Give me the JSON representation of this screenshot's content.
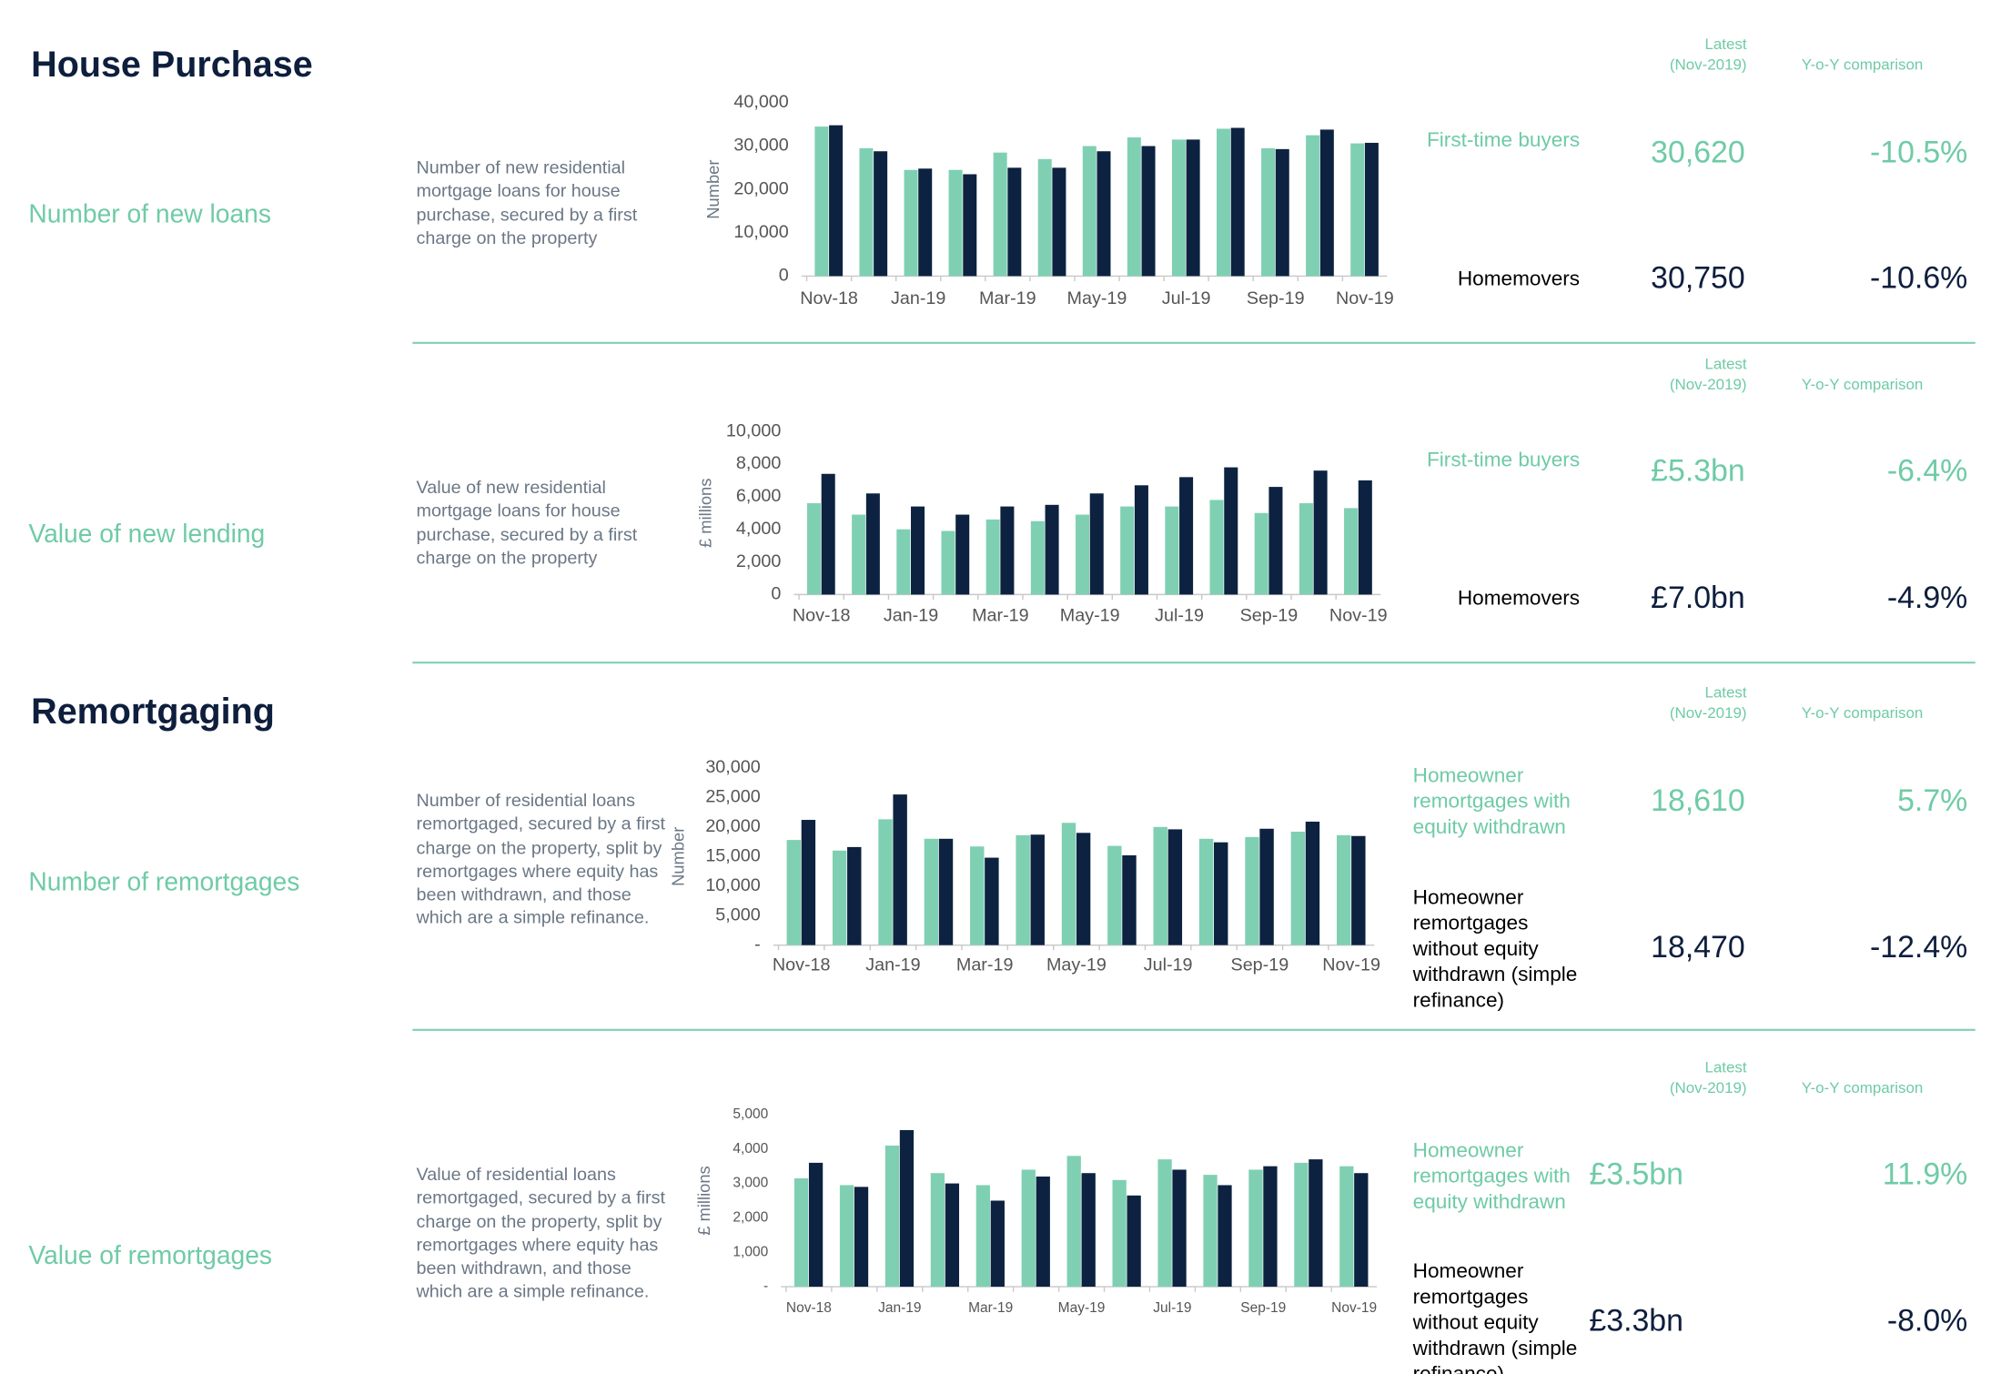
{
  "sections": [
    {
      "title": "House Purchase",
      "rows": [
        {
          "label": "Number of new loans",
          "description": "Number of new residential mortgage loans for house purchase, secured by a first charge on the property",
          "latest_header": [
            "Latest",
            "(Nov-2019)"
          ],
          "yoy_header": "Y-o-Y comparison",
          "stats": [
            {
              "name": "First-time buyers",
              "latest": "30,620",
              "yoy": "-10.5%"
            },
            {
              "name": "Homemovers",
              "latest": "30,750",
              "yoy": "-10.6%"
            }
          ]
        },
        {
          "label": "Value of new lending",
          "description": "Value of new residential mortgage loans for house purchase, secured by a first charge on the property",
          "latest_header": [
            "Latest",
            "(Nov-2019)"
          ],
          "yoy_header": "Y-o-Y comparison",
          "stats": [
            {
              "name": "First-time buyers",
              "latest": "£5.3bn",
              "yoy": "-6.4%"
            },
            {
              "name": "Homemovers",
              "latest": "£7.0bn",
              "yoy": "-4.9%"
            }
          ]
        }
      ]
    },
    {
      "title": "Remortgaging",
      "rows": [
        {
          "label": "Number of remortgages",
          "description": "Number of residential loans remortgaged, secured by a first charge on the property, split by remortgages where equity has been withdrawn, and those which are a simple refinance.",
          "latest_header": [
            "Latest",
            "(Nov-2019)"
          ],
          "yoy_header": "Y-o-Y comparison",
          "stats": [
            {
              "name": "Homeowner remortgages with equity withdrawn",
              "latest": "18,610",
              "yoy": "5.7%"
            },
            {
              "name": "Homeowner remortgages without equity withdrawn (simple refinance)",
              "latest": "18,470",
              "yoy": "-12.4%"
            }
          ]
        },
        {
          "label": "Value of remortgages",
          "description": "Value of residential loans remortgaged, secured by a first charge on the property, split by remortgages where equity has been withdrawn, and those which are a simple refinance.",
          "latest_header": [
            "Latest",
            "(Nov-2019)"
          ],
          "yoy_header": "Y-o-Y comparison",
          "stats": [
            {
              "name": "Homeowner remortgages with equity withdrawn",
              "latest": "£3.5bn",
              "yoy": "11.9%"
            },
            {
              "name": "Homeowner remortgages without equity withdrawn (simple refinance)",
              "latest": "£3.3bn",
              "yoy": "-8.0%"
            }
          ]
        }
      ]
    }
  ],
  "chart_data": [
    {
      "type": "bar",
      "y_label": "Number",
      "categories": [
        "Nov-18",
        null,
        "Jan-19",
        null,
        "Mar-19",
        null,
        "May-19",
        null,
        "Jul-19",
        null,
        "Sep-19",
        null,
        "Nov-19"
      ],
      "series": [
        {
          "color": "#7fd0b2",
          "values": [
            34500,
            29500,
            24500,
            24500,
            28500,
            27000,
            30000,
            32000,
            31500,
            34000,
            29500,
            32500,
            30620
          ]
        },
        {
          "color": "#0c2240",
          "values": [
            34800,
            28800,
            24800,
            23500,
            25000,
            25000,
            28800,
            30000,
            31500,
            34200,
            29300,
            33800,
            30750
          ]
        }
      ],
      "ylim": [
        0,
        40000
      ],
      "yticks": [
        0,
        {
          "value": 10000,
          "label": "10,000"
        },
        {
          "value": 20000,
          "label": "20,000"
        },
        {
          "value": 30000,
          "label": "30,000"
        },
        {
          "value": 40000,
          "label": "40,000"
        }
      ]
    },
    {
      "type": "bar",
      "y_label": "£ millions",
      "categories": [
        "Nov-18",
        null,
        "Jan-19",
        null,
        "Mar-19",
        null,
        "May-19",
        null,
        "Jul-19",
        null,
        "Sep-19",
        null,
        "Nov-19"
      ],
      "series": [
        {
          "color": "#7fd0b2",
          "values": [
            5600,
            4900,
            4000,
            3900,
            4600,
            4500,
            4900,
            5400,
            5400,
            5800,
            5000,
            5600,
            5300
          ]
        },
        {
          "color": "#0c2240",
          "values": [
            7400,
            6200,
            5400,
            4900,
            5400,
            5500,
            6200,
            6700,
            7200,
            7800,
            6600,
            7600,
            7000
          ]
        }
      ],
      "ylim": [
        0,
        10000
      ],
      "yticks": [
        0,
        {
          "value": 2000,
          "label": "2,000"
        },
        {
          "value": 4000,
          "label": "4,000"
        },
        {
          "value": 6000,
          "label": "6,000"
        },
        {
          "value": 8000,
          "label": "8,000"
        },
        {
          "value": 10000,
          "label": "10,000"
        }
      ]
    },
    {
      "type": "bar",
      "y_label": "Number",
      "categories": [
        "Nov-18",
        null,
        "Jan-19",
        null,
        "Mar-19",
        null,
        "May-19",
        null,
        "Jul-19",
        null,
        "Sep-19",
        null,
        "Nov-19"
      ],
      "series": [
        {
          "color": "#7fd0b2",
          "values": [
            17800,
            16000,
            21300,
            18000,
            16700,
            18600,
            20700,
            16800,
            20000,
            18000,
            18300,
            19200,
            18610
          ]
        },
        {
          "color": "#0c2240",
          "values": [
            21200,
            16600,
            25500,
            18000,
            14800,
            18700,
            19000,
            15200,
            19600,
            17400,
            19700,
            20900,
            18470
          ]
        }
      ],
      "ylim": [
        0,
        30000
      ],
      "yticks": [
        {
          "value": 0,
          "label": "-"
        },
        {
          "value": 5000,
          "label": "5,000"
        },
        {
          "value": 10000,
          "label": "10,000"
        },
        {
          "value": 15000,
          "label": "15,000"
        },
        {
          "value": 20000,
          "label": "20,000"
        },
        {
          "value": 25000,
          "label": "25,000"
        },
        {
          "value": 30000,
          "label": "30,000"
        }
      ]
    },
    {
      "type": "bar",
      "y_label": "£ millions",
      "categories": [
        "Nov-18",
        null,
        "Jan-19",
        null,
        "Mar-19",
        null,
        "May-19",
        null,
        "Jul-19",
        null,
        "Sep-19",
        null,
        "Nov-19"
      ],
      "series": [
        {
          "color": "#7fd0b2",
          "values": [
            3150,
            2950,
            4100,
            3300,
            2950,
            3400,
            3800,
            3100,
            3700,
            3250,
            3400,
            3600,
            3500
          ]
        },
        {
          "color": "#0c2240",
          "values": [
            3600,
            2900,
            4550,
            3000,
            2500,
            3200,
            3300,
            2650,
            3400,
            2950,
            3500,
            3700,
            3300
          ]
        }
      ],
      "ylim": [
        0,
        5000
      ],
      "yticks": [
        {
          "value": 0,
          "label": "-"
        },
        {
          "value": 1000,
          "label": "1,000"
        },
        {
          "value": 2000,
          "label": "2,000"
        },
        {
          "value": 3000,
          "label": "3,000"
        },
        {
          "value": 4000,
          "label": "4,000"
        },
        {
          "value": 5000,
          "label": "5,000"
        }
      ]
    }
  ]
}
